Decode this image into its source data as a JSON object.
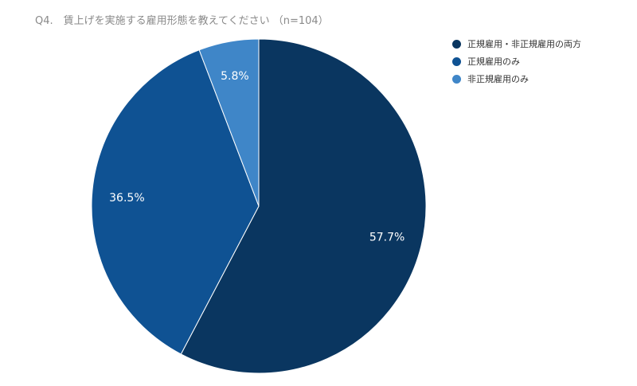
{
  "chart_data": {
    "type": "pie",
    "title": "Q4.　賃上げを実施する雇用形態を教えてください （n=104）",
    "categories": [
      "正規雇用・非正規雇用の両方",
      "正規雇用のみ",
      "非正規雇用のみ"
    ],
    "values": [
      57.7,
      36.5,
      5.8
    ],
    "data_labels": [
      "57.7%",
      "36.5%",
      "5.8%"
    ],
    "colors": [
      "#0a3660",
      "#0f5293",
      "#3f86c8"
    ],
    "start_angle_deg": 0,
    "direction": "clockwise",
    "legend_position": "top-right"
  }
}
